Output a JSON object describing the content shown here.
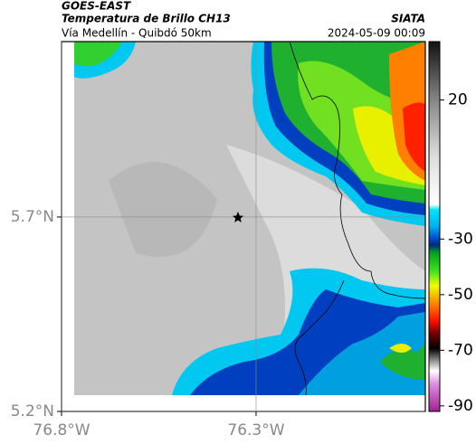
{
  "header": {
    "satellite": "GOES-EAST",
    "product": "Temperatura de Brillo CH13",
    "route": "Vía Medellín - Quibdó 50km",
    "source": "SIATA",
    "datetime": "2024-05-09 00:09"
  },
  "map": {
    "xlim": [
      -76.8,
      -75.865
    ],
    "ylim": [
      5.2,
      6.151
    ],
    "xticks": [
      {
        "value": -76.8,
        "label": "76.8°W"
      },
      {
        "value": -76.3,
        "label": "76.3°W"
      }
    ],
    "yticks": [
      {
        "value": 5.2,
        "label": "5.2°N"
      },
      {
        "value": 5.7,
        "label": "5.7°N"
      }
    ],
    "grid": true
  },
  "colorbar": {
    "lim": [
      -92,
      41
    ],
    "ticks": [
      20,
      -30,
      -50,
      -70,
      -90
    ]
  }
}
